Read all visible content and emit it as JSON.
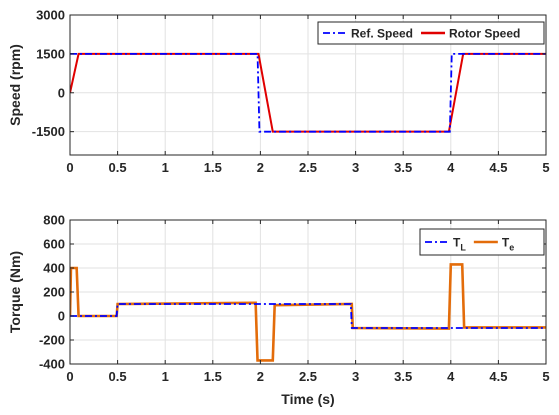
{
  "chart_data": [
    {
      "type": "line",
      "xlabel": "",
      "ylabel": "Speed (rpm)",
      "xlim": [
        0,
        5
      ],
      "ylim": [
        -2400,
        3000
      ],
      "xticks": [
        0,
        0.5,
        1,
        1.5,
        2,
        2.5,
        3,
        3.5,
        4,
        4.5,
        5
      ],
      "xtick_labels": [
        "0",
        "0.5",
        "1",
        "1.5",
        "2",
        "2.5",
        "3",
        "3.5",
        "4",
        "4.5",
        "5"
      ],
      "yticks": [
        3000,
        1500,
        0,
        -1500
      ],
      "ytick_labels": [
        "3000",
        "1500",
        "0",
        "-1500"
      ],
      "grid": true,
      "legend_position": "top-right",
      "series": [
        {
          "name": "Ref. Speed",
          "color": "#0000ff",
          "style": "dash-dot",
          "x": [
            0,
            0.01,
            1.97,
            1.99,
            3.99,
            4.01,
            5
          ],
          "y": [
            1500,
            1500,
            1500,
            -1500,
            -1500,
            1500,
            1500
          ]
        },
        {
          "name": "Rotor Speed",
          "color": "#e00000",
          "style": "solid",
          "x": [
            0,
            0.09,
            1.98,
            2.13,
            3.98,
            4.13,
            5
          ],
          "y": [
            0,
            1500,
            1500,
            -1500,
            -1500,
            1500,
            1500
          ]
        }
      ]
    },
    {
      "type": "line",
      "xlabel": "Time (s)",
      "ylabel": "Torque (Nm)",
      "xlim": [
        0,
        5
      ],
      "ylim": [
        -400,
        800
      ],
      "xticks": [
        0,
        0.5,
        1,
        1.5,
        2,
        2.5,
        3,
        3.5,
        4,
        4.5,
        5
      ],
      "xtick_labels": [
        "0",
        "0.5",
        "1",
        "1.5",
        "2",
        "2.5",
        "3",
        "3.5",
        "4",
        "4.5",
        "5"
      ],
      "yticks": [
        800,
        600,
        400,
        200,
        0,
        -200,
        -400
      ],
      "ytick_labels": [
        "800",
        "600",
        "400",
        "200",
        "0",
        "-200",
        "-400"
      ],
      "grid": true,
      "legend_position": "top-right",
      "series": [
        {
          "name": "T",
          "subscript": "L",
          "color": "#0000ff",
          "style": "dash-dot",
          "x": [
            0,
            0.49,
            0.5,
            2.95,
            2.96,
            5
          ],
          "y": [
            0,
            0,
            100,
            100,
            -100,
            -100
          ]
        },
        {
          "name": "T",
          "subscript": "e",
          "color": "#e36c0a",
          "style": "solid",
          "x": [
            0,
            0.01,
            0.07,
            0.09,
            0.49,
            0.5,
            1.95,
            1.97,
            2.13,
            2.15,
            2.96,
            2.97,
            3.98,
            4.0,
            4.12,
            4.14,
            5
          ],
          "y": [
            0,
            400,
            400,
            0,
            0,
            100,
            110,
            -370,
            -370,
            90,
            100,
            -100,
            -105,
            430,
            430,
            -95,
            -95
          ]
        }
      ]
    }
  ]
}
